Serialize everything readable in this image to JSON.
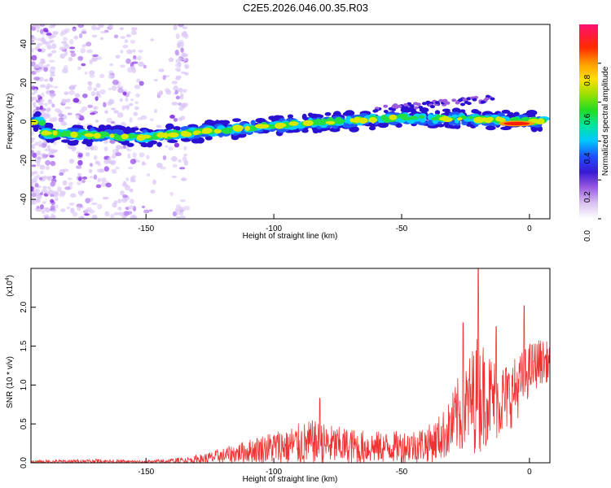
{
  "title": "C2E5.2026.046.00.35.R03",
  "chart_data": [
    {
      "type": "heatmap",
      "xlabel": "Height of straight line (km)",
      "ylabel": "Frequency (Hz)",
      "xlim": [
        -195,
        8
      ],
      "ylim": [
        -50,
        50
      ],
      "xticks": [
        -150,
        -100,
        -50,
        0
      ],
      "yticks": [
        -40,
        -20,
        0,
        20,
        40
      ],
      "colorbar": {
        "label": "Normalized spectral amplitude",
        "range": [
          0,
          1
        ],
        "ticks": [
          "0.0",
          "0.2",
          "0.4",
          "0.6",
          "0.8"
        ]
      },
      "ridge": {
        "description_points_x": [
          -190,
          -150,
          -100,
          -50,
          -15,
          5
        ],
        "description_points_y": [
          -6,
          -8,
          -2,
          2,
          1,
          0
        ]
      }
    },
    {
      "type": "line",
      "xlabel": "Height of straight line (km)",
      "ylabel": "SNR (10 * v/v)",
      "multiplier": "(x10",
      "multiplier_exp": "4",
      "multiplier_close": ")",
      "xlim": [
        -195,
        8
      ],
      "ylim": [
        0,
        2.5
      ],
      "xticks": [
        -150,
        -100,
        -50,
        0
      ],
      "yticks": [
        "0.0",
        "0.5",
        "1.0",
        "1.5",
        "2.0"
      ],
      "envelope": {
        "x": [
          -195,
          -170,
          -150,
          -135,
          -125,
          -115,
          -105,
          -95,
          -85,
          -75,
          -65,
          -55,
          -45,
          -38,
          -32,
          -28,
          -24,
          -20,
          -16,
          -12,
          -8,
          -4,
          0,
          4,
          8
        ],
        "mean": [
          0.01,
          0.02,
          0.01,
          0.03,
          0.06,
          0.12,
          0.18,
          0.22,
          0.25,
          0.22,
          0.2,
          0.2,
          0.22,
          0.26,
          0.4,
          0.6,
          0.75,
          0.9,
          0.85,
          0.8,
          0.85,
          1.0,
          1.2,
          1.3,
          1.3
        ],
        "amp": [
          0.02,
          0.03,
          0.02,
          0.04,
          0.08,
          0.12,
          0.18,
          0.25,
          0.3,
          0.25,
          0.22,
          0.2,
          0.22,
          0.25,
          0.35,
          0.5,
          0.6,
          0.8,
          0.6,
          0.5,
          0.45,
          0.4,
          0.35,
          0.3,
          0.25
        ],
        "color": "#ee3333"
      },
      "peaks": [
        [
          -82,
          0.83
        ],
        [
          -20,
          2.5
        ],
        [
          -2,
          2.02
        ],
        [
          -26,
          1.8
        ],
        [
          -13,
          1.75
        ]
      ]
    }
  ]
}
